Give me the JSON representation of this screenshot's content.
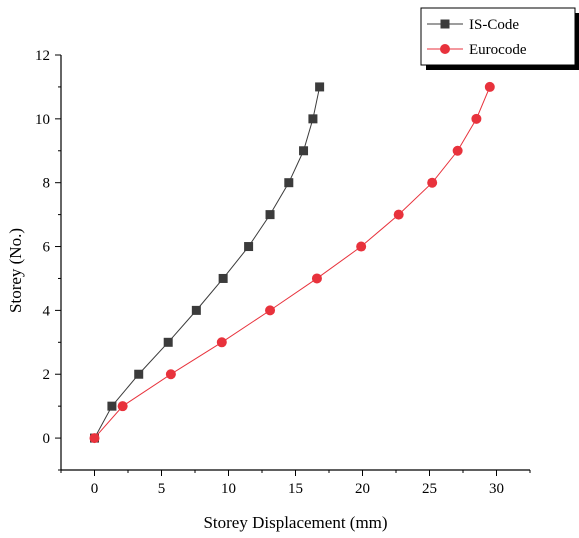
{
  "chart_data": {
    "type": "line",
    "title": "",
    "xlabel": "Storey Displacement (mm)",
    "ylabel": "Storey (No.)",
    "xlim": [
      -2.5,
      32.5
    ],
    "ylim": [
      -1,
      12
    ],
    "xticks": [
      0,
      5,
      10,
      15,
      20,
      25,
      30
    ],
    "yticks": [
      0,
      2,
      4,
      6,
      8,
      10,
      12
    ],
    "grid": false,
    "legend_position": "top-right",
    "series": [
      {
        "name": "IS-Code",
        "color": "#3b3b3b",
        "marker": "square",
        "x": [
          0,
          1.3,
          3.3,
          5.5,
          7.6,
          9.6,
          11.5,
          13.1,
          14.5,
          15.6,
          16.3,
          16.8
        ],
        "y": [
          0,
          1,
          2,
          3,
          4,
          5,
          6,
          7,
          8,
          9,
          10,
          11
        ]
      },
      {
        "name": "Eurocode",
        "color": "#e8323c",
        "marker": "circle",
        "x": [
          0,
          2.1,
          5.7,
          9.5,
          13.1,
          16.6,
          19.9,
          22.7,
          25.2,
          27.1,
          28.5,
          29.5
        ],
        "y": [
          0,
          1,
          2,
          3,
          4,
          5,
          6,
          7,
          8,
          9,
          10,
          11
        ]
      }
    ]
  }
}
